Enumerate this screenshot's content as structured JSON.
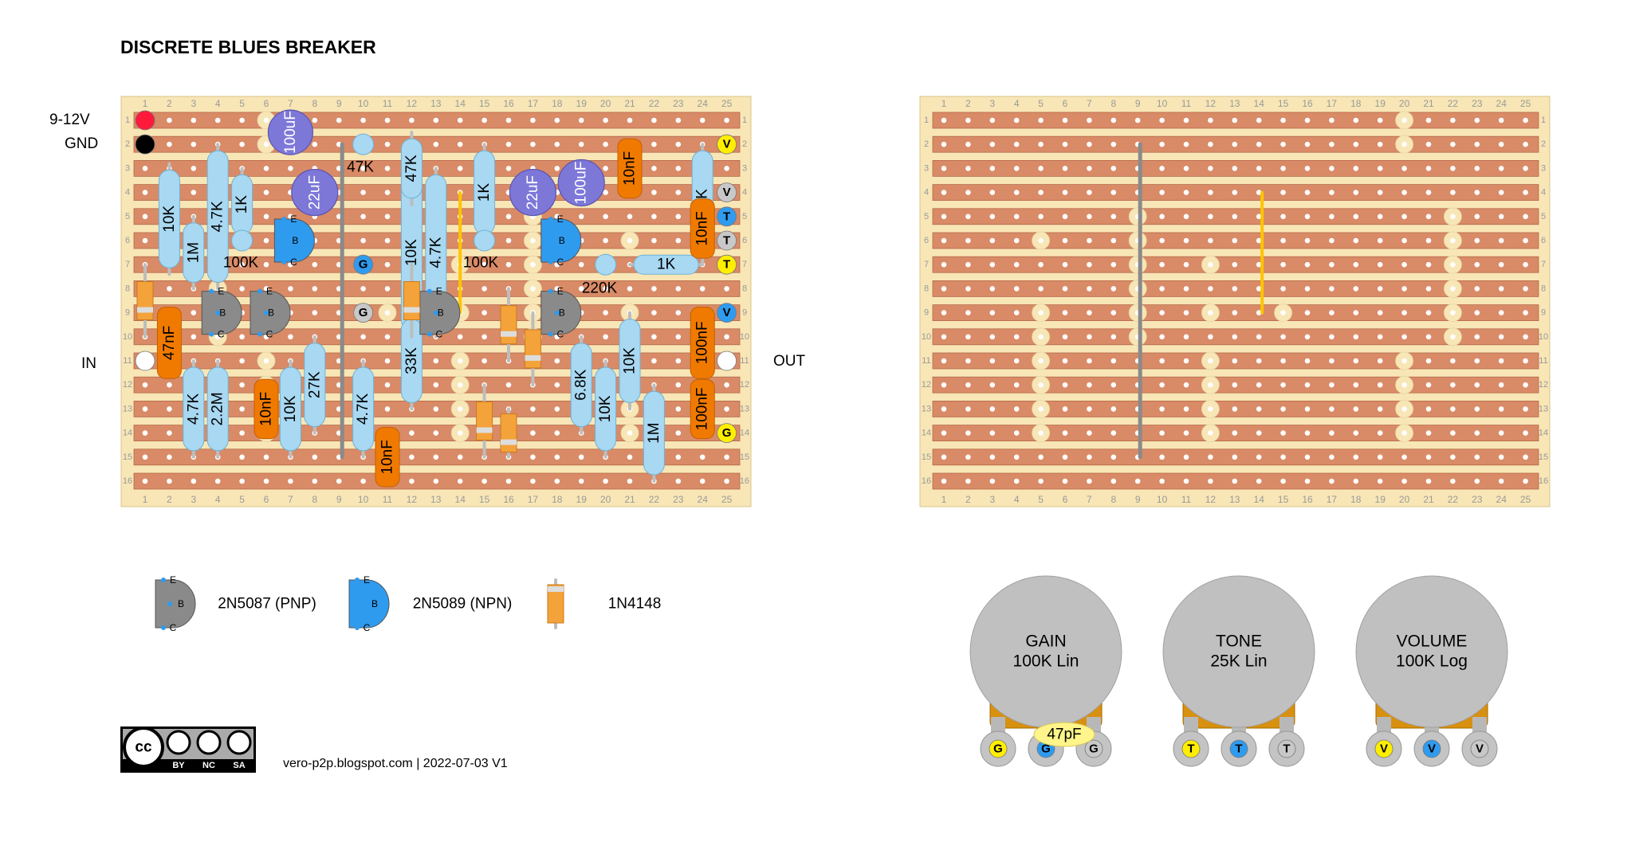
{
  "title": "DISCRETE BLUES BREAKER",
  "power_labels": {
    "vin": "9-12V",
    "gnd": "GND"
  },
  "io_labels": {
    "input": "IN",
    "output": "OUT"
  },
  "board": {
    "columns": 25,
    "rows": 16
  },
  "component_labels": [
    "100uF",
    "22uF",
    "22uF",
    "100uF",
    "47K",
    "47K",
    "10K",
    "4.7K",
    "1K",
    "1M",
    "100K",
    "10K",
    "4.7K",
    "1K",
    "100K",
    "10nF",
    "6.8K",
    "10nF",
    "1K",
    "220K",
    "47nF",
    "33K",
    "27K",
    "4.7K",
    "2.2M",
    "10nF",
    "10K",
    "4.7K",
    "10nF",
    "6.8K",
    "10K",
    "10K",
    "1M",
    "100nF",
    "100nF"
  ],
  "offboard_pins": [
    "V",
    "V",
    "T",
    "T",
    "T",
    "V",
    "G",
    "G",
    "G"
  ],
  "legend": [
    {
      "part": "2N5087 (PNP)",
      "pins": [
        "E",
        "B",
        "C"
      ]
    },
    {
      "part": "2N5089 (NPN)",
      "pins": [
        "E",
        "B",
        "C"
      ]
    },
    {
      "part": "1N4148"
    }
  ],
  "pots": [
    {
      "name": "GAIN",
      "value": "100K Lin",
      "lugs": [
        "G",
        "G",
        "G"
      ]
    },
    {
      "name": "TONE",
      "value": "25K Lin",
      "lugs": [
        "T",
        "T",
        "T"
      ]
    },
    {
      "name": "VOLUME",
      "value": "100K Log",
      "lugs": [
        "V",
        "V",
        "V"
      ]
    }
  ],
  "pot_cap_label": "47pF",
  "license_badge": [
    "BY",
    "NC",
    "SA"
  ],
  "footer": "vero-p2p.blogspot.com  |  2022-07-03 V1",
  "colors": {
    "board": "#f8e6b6",
    "strip": "#d98a66",
    "resistor": "#a8d8f2",
    "film_cap": "#f07a00",
    "electrolytic": "#7d78d8",
    "npn": "#2f9bef",
    "pnp": "#8a8a8a",
    "pad_yellow": "#ffee00",
    "pad_blue": "#2f9bef",
    "pad_grey": "#c8c8c8",
    "link": "#ffc400",
    "pot": "#c0c0c0",
    "pot_body": "#d8900f"
  }
}
